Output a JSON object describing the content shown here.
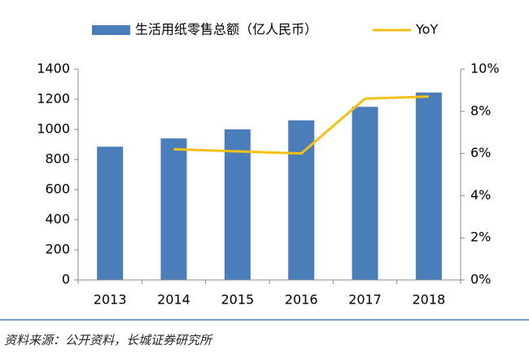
{
  "chart_data": {
    "type": "bar_line",
    "categories": [
      "2013",
      "2014",
      "2015",
      "2016",
      "2017",
      "2018"
    ],
    "series": [
      {
        "name": "生活用纸零售总额（亿人民币）",
        "type": "bar",
        "color": "#4a7ebb",
        "values": [
          885,
          940,
          1000,
          1060,
          1150,
          1245
        ]
      },
      {
        "name": "YoY",
        "type": "line",
        "axis": "y2",
        "color": "#f5c016",
        "values": [
          null,
          6.2,
          6.1,
          6.0,
          8.6,
          8.7
        ]
      }
    ],
    "ylim": [
      0,
      1400
    ],
    "yticks": [
      0,
      200,
      400,
      600,
      800,
      1000,
      1200,
      1400
    ],
    "y2lim": [
      0,
      10
    ],
    "y2ticks": [
      {
        "value": 0,
        "label": "0%"
      },
      {
        "value": 2,
        "label": "2%"
      },
      {
        "value": 4,
        "label": "4%"
      },
      {
        "value": 6,
        "label": "6%"
      },
      {
        "value": 8,
        "label": "8%"
      },
      {
        "value": 10,
        "label": "10%"
      }
    ],
    "source": "资料来源：公开资料，长城证券研究所"
  }
}
